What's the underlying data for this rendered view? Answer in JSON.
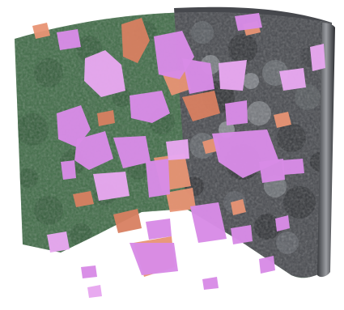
{
  "figure": {
    "caption": "",
    "colors": {
      "background": "#ffffff",
      "green_region": "#3e6a45",
      "green_shadow": "#2f5536",
      "gray_region": "#46484d",
      "gray_light": "#7b7e84",
      "gray_dark": "#232427",
      "rim": "#5d5f64",
      "pink_phase": "#d88be6",
      "pink_highlight": "#e7a7ef",
      "orange_phase": "#e89474",
      "orange_dark": "#d87f61"
    },
    "segments": [
      {
        "id": "green-matrix",
        "color_key": "green_region"
      },
      {
        "id": "gray-matrix",
        "color_key": "gray_region"
      },
      {
        "id": "pink-grains",
        "color_key": "pink_phase"
      },
      {
        "id": "orange-grains",
        "color_key": "orange_phase"
      }
    ]
  }
}
